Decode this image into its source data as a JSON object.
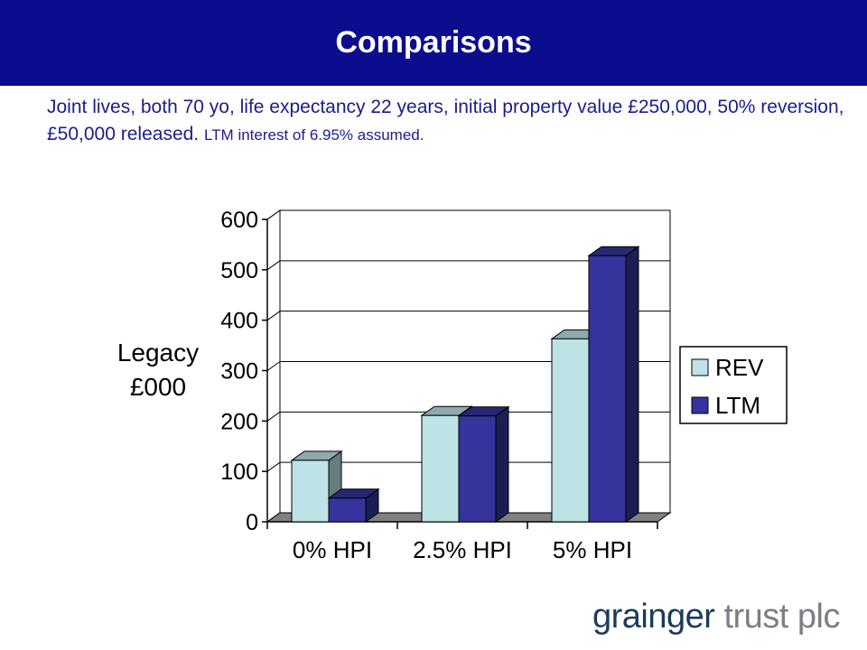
{
  "header": {
    "title": "Comparisons"
  },
  "subtitle": {
    "main": "Joint lives, both 70 yo, life expectancy 22 years, initial property value £250,000, 50% reversion, £50,000 released.",
    "small": "LTM interest of 6.95% assumed."
  },
  "logo": {
    "part1": "grainger",
    "part2": "trust plc"
  },
  "chart_data": {
    "type": "bar",
    "title": "",
    "xlabel": "",
    "ylabel_lines": [
      "Legacy",
      "£000"
    ],
    "categories": [
      "0% HPI",
      "2.5% HPI",
      "5% HPI"
    ],
    "series": [
      {
        "name": "REV",
        "values": [
          122,
          211,
          363
        ],
        "color": "#bde3e6"
      },
      {
        "name": "LTM",
        "values": [
          47,
          210,
          528
        ],
        "color": "#34349c"
      }
    ],
    "ylim": [
      0,
      600
    ],
    "yticks": [
      0,
      100,
      200,
      300,
      400,
      500,
      600
    ],
    "grid": true,
    "legend": "right",
    "style": "3d"
  }
}
